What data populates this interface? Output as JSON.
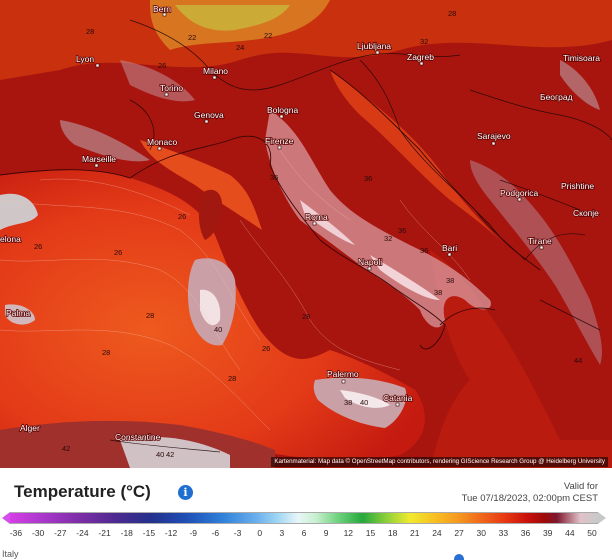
{
  "map": {
    "cities": [
      {
        "name": "Bern"
      },
      {
        "name": "Lyon"
      },
      {
        "name": "Milano"
      },
      {
        "name": "Torino"
      },
      {
        "name": "Genova"
      },
      {
        "name": "Monaco"
      },
      {
        "name": "Marseille"
      },
      {
        "name": "Bologna"
      },
      {
        "name": "Firenze"
      },
      {
        "name": "Roma"
      },
      {
        "name": "Napoli"
      },
      {
        "name": "Bari"
      },
      {
        "name": "Palermo"
      },
      {
        "name": "Catania"
      },
      {
        "name": "Ljubljana"
      },
      {
        "name": "Zagreb"
      },
      {
        "name": "Timisoara"
      },
      {
        "name": "Београд"
      },
      {
        "name": "Sarajevo"
      },
      {
        "name": "Podgorica"
      },
      {
        "name": "Prishtine"
      },
      {
        "name": "Скопје"
      },
      {
        "name": "Tirane"
      },
      {
        "name": "Constantine"
      },
      {
        "name": "Alger"
      },
      {
        "name": "Palma"
      },
      {
        "name": "elona"
      }
    ],
    "isotherm_labels": [
      "28",
      "26",
      "26",
      "26",
      "28",
      "28",
      "28",
      "26",
      "40",
      "36",
      "36",
      "38",
      "38",
      "32",
      "36",
      "28",
      "38",
      "40",
      "36",
      "24",
      "22",
      "28",
      "32",
      "22",
      "26",
      "34",
      "40",
      "42",
      "44",
      "42"
    ],
    "attribution": "Kartenmaterial: Map data © OpenStreetMap contributors, rendering GIScience Research Group @ Heidelberg University",
    "colors": {
      "sea_hot": "#e8421a",
      "land_hot": "#b3150c",
      "peak": "#e8bcc0"
    }
  },
  "legend": {
    "title": "Temperature (°C)",
    "info_icon": "info-icon",
    "valid_label": "Valid for",
    "valid_time": "Tue 07/18/2023, 02:00pm CEST",
    "ticks": [
      "-36",
      "-30",
      "-27",
      "-24",
      "-21",
      "-18",
      "-15",
      "-12",
      "-9",
      "-6",
      "-3",
      "0",
      "3",
      "6",
      "9",
      "12",
      "15",
      "18",
      "21",
      "24",
      "27",
      "30",
      "33",
      "36",
      "39",
      "44",
      "50"
    ]
  },
  "footer": {
    "country": "Italy"
  }
}
